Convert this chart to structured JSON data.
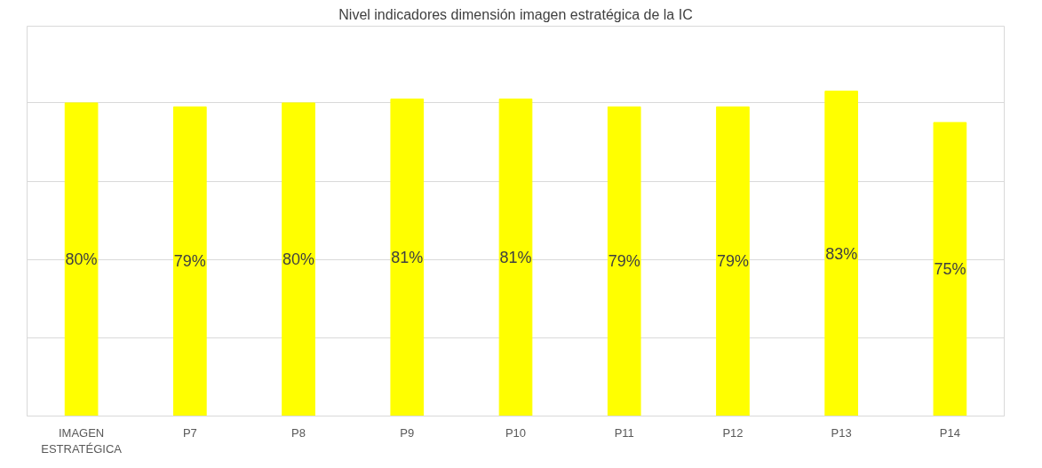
{
  "chart_data": {
    "type": "bar",
    "title": "Nivel indicadores dimensión imagen estratégica de la IC",
    "categories": [
      "IMAGEN ESTRATÉGICA",
      "P7",
      "P8",
      "P9",
      "P10",
      "P11",
      "P12",
      "P13",
      "P14"
    ],
    "values": [
      80,
      79,
      80,
      81,
      81,
      79,
      79,
      83,
      75
    ],
    "value_labels": [
      "80%",
      "79%",
      "80%",
      "81%",
      "81%",
      "79%",
      "79%",
      "83%",
      "75%"
    ],
    "color": "#ffff00",
    "grid": "y",
    "tick_labels": "x"
  }
}
